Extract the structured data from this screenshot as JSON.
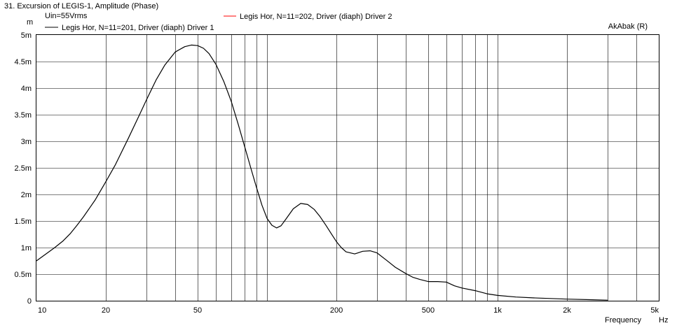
{
  "chart_data": {
    "type": "line",
    "title": "31. Excursion of LEGIS-1, Amplitude (Phase)",
    "subtitle": "Uin=55Vrms",
    "brand": "AkAbak (R)",
    "ylabel": "m",
    "xlabel": "Frequency",
    "xunit": "Hz",
    "xscale": "log",
    "xlim": [
      10,
      5000
    ],
    "ylim": [
      0,
      0.005
    ],
    "grid": true,
    "legend_placement": "top",
    "x_ticks": [
      {
        "value": 10,
        "label": "10"
      },
      {
        "value": 20,
        "label": "20"
      },
      {
        "value": 50,
        "label": "50"
      },
      {
        "value": 200,
        "label": "200"
      },
      {
        "value": 500,
        "label": "500"
      },
      {
        "value": 1000,
        "label": "1k"
      },
      {
        "value": 2000,
        "label": "2k"
      },
      {
        "value": 5000,
        "label": "5k"
      }
    ],
    "x_gridlines": [
      20,
      30,
      40,
      50,
      60,
      70,
      80,
      90,
      100,
      200,
      300,
      400,
      500,
      600,
      700,
      800,
      900,
      1000,
      2000,
      3000,
      4000
    ],
    "y_ticks": [
      {
        "value": 0,
        "label": "0"
      },
      {
        "value": 0.0005,
        "label": "0.5m"
      },
      {
        "value": 0.001,
        "label": "1m"
      },
      {
        "value": 0.0015,
        "label": "1.5m"
      },
      {
        "value": 0.002,
        "label": "2m"
      },
      {
        "value": 0.0025,
        "label": "2.5m"
      },
      {
        "value": 0.003,
        "label": "3m"
      },
      {
        "value": 0.0035,
        "label": "3.5m"
      },
      {
        "value": 0.004,
        "label": "4m"
      },
      {
        "value": 0.0045,
        "label": "4.5m"
      },
      {
        "value": 0.005,
        "label": "5m"
      }
    ],
    "series": [
      {
        "name": "Legis Hor, N=11=201, Driver (diaph) Driver 1",
        "color": "#000000",
        "x": [
          10,
          11,
          12,
          13,
          14,
          15,
          16,
          18,
          20,
          22,
          25,
          28,
          30,
          33,
          36,
          40,
          44,
          47,
          50,
          53,
          56,
          60,
          65,
          70,
          75,
          80,
          85,
          90,
          95,
          100,
          105,
          110,
          115,
          120,
          130,
          140,
          150,
          160,
          170,
          180,
          190,
          200,
          210,
          220,
          240,
          260,
          280,
          300,
          330,
          360,
          400,
          430,
          460,
          500,
          550,
          600,
          650,
          700,
          800,
          900,
          1000,
          1200,
          1500,
          2000,
          2500,
          3000
        ],
        "y": [
          0.00075,
          0.00088,
          0.001,
          0.00112,
          0.00126,
          0.00142,
          0.00158,
          0.0019,
          0.00224,
          0.00256,
          0.00305,
          0.0035,
          0.00378,
          0.00415,
          0.00443,
          0.00468,
          0.00478,
          0.00481,
          0.0048,
          0.00475,
          0.00465,
          0.00445,
          0.00412,
          0.00375,
          0.00332,
          0.0029,
          0.0025,
          0.00213,
          0.0018,
          0.00155,
          0.00142,
          0.00137,
          0.00141,
          0.00152,
          0.00173,
          0.00183,
          0.00181,
          0.00172,
          0.00158,
          0.00142,
          0.00126,
          0.00111,
          0.001,
          0.00092,
          0.00088,
          0.00093,
          0.00094,
          0.0009,
          0.00076,
          0.00063,
          0.00051,
          0.00044,
          0.0004,
          0.00036,
          0.00036,
          0.00035,
          0.00028,
          0.00024,
          0.00019,
          0.00013,
          0.0001,
          7e-05,
          5e-05,
          3e-05,
          2e-05,
          1e-05
        ]
      },
      {
        "name": "Legis Hor, N=11=202, Driver (diaph) Driver 2",
        "color": "#ff0000",
        "x": [],
        "y": []
      }
    ]
  }
}
